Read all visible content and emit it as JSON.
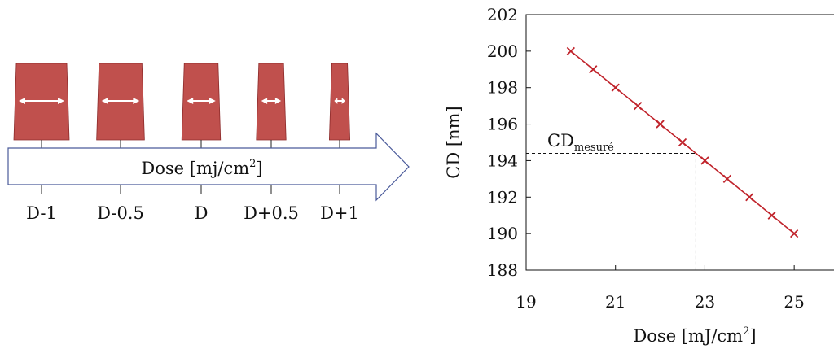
{
  "colors": {
    "resist": "#c0504d",
    "resist_stroke": "#8c2a2a",
    "arrow_outline": "#4a5a9a",
    "series": "#c0232b"
  },
  "diagram": {
    "arrow_label": {
      "base": "Dose [mj/cm",
      "sup": "2",
      "end": "]"
    },
    "steps": [
      "D-1",
      "D-0.5",
      "D",
      "D+0.5",
      "D+1"
    ],
    "relative_widths": [
      1.0,
      0.85,
      0.67,
      0.49,
      0.31
    ]
  },
  "chart_data": {
    "type": "line",
    "xlabel": {
      "base": "Dose [mJ/cm",
      "sup": "2",
      "end": "]"
    },
    "ylabel": "CD [nm]",
    "xlim": [
      19,
      26
    ],
    "ylim": [
      188,
      202
    ],
    "xticks": [
      19,
      21,
      23,
      25
    ],
    "yticks": [
      188,
      190,
      192,
      194,
      196,
      198,
      200,
      202
    ],
    "grid": false,
    "series": [
      {
        "marker": "x",
        "x": [
          20,
          20.5,
          21,
          21.5,
          22,
          22.5,
          23,
          23.5,
          24,
          24.5,
          25
        ],
        "y": [
          200,
          199,
          198,
          197,
          196,
          195,
          194,
          193,
          192,
          191,
          190
        ]
      }
    ],
    "annotation": {
      "label_base": "CD",
      "label_sub": "mesuré",
      "x": 22.8,
      "y": 194.4
    }
  }
}
